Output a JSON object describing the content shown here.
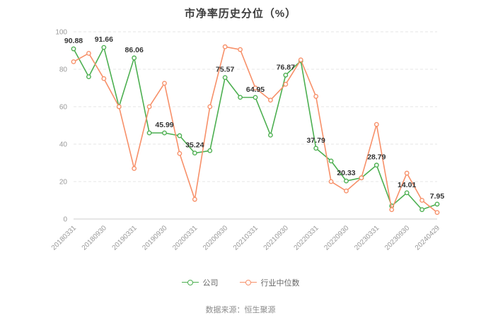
{
  "title": "市净率历史分位（%）",
  "footer": {
    "source_label": "数据来源：恒生聚源"
  },
  "legend": [
    {
      "name": "公司",
      "color": "#4caf50"
    },
    {
      "name": "行业中位数",
      "color": "#f79069"
    }
  ],
  "chart_data": {
    "type": "line",
    "title": "市净率历史分位（%）",
    "xlabel": "",
    "ylabel": "",
    "ylim": [
      0,
      100
    ],
    "y_ticks": [
      0,
      20,
      40,
      60,
      80,
      100
    ],
    "grid": "horizontal-dashed",
    "legend_position": "bottom",
    "x": [
      "20180331",
      "20180630",
      "20180930",
      "20181231",
      "20190331",
      "20190630",
      "20190930",
      "20191231",
      "20200331",
      "20200630",
      "20200930",
      "20201231",
      "20210331",
      "20210630",
      "20210930",
      "20211231",
      "20220331",
      "20220630",
      "20220930",
      "20221231",
      "20230331",
      "20230630",
      "20230930",
      "20231231",
      "20240429"
    ],
    "tick_labels": [
      "20180331",
      "20180930",
      "20190331",
      "20190930",
      "20200331",
      "20200930",
      "20210331",
      "20210930",
      "20220331",
      "20220930",
      "20230331",
      "20230930",
      "20240429"
    ],
    "series": [
      {
        "name": "公司",
        "key": "company",
        "color": "#4caf50",
        "values": [
          90.88,
          76,
          91.66,
          60,
          86.06,
          46,
          45.99,
          44.5,
          35.24,
          36.5,
          75.57,
          65,
          64.95,
          44.8,
          76.87,
          84.5,
          37.79,
          31,
          20.33,
          22,
          28.79,
          7,
          14.01,
          5,
          7.95
        ]
      },
      {
        "name": "行业中位数",
        "key": "industry-median",
        "color": "#f79069",
        "values": [
          84,
          88.5,
          75,
          60,
          27,
          60,
          72.5,
          35,
          10.5,
          60,
          92,
          90.5,
          70,
          63.5,
          72,
          85,
          65.5,
          20,
          15,
          22,
          50.5,
          5,
          24.5,
          10,
          3.5
        ]
      }
    ],
    "point_labels": {
      "series": "公司",
      "indices": [
        0,
        2,
        4,
        6,
        8,
        10,
        12,
        14,
        16,
        18,
        20,
        22,
        24
      ],
      "labels": [
        "90.88",
        "91.66",
        "86.06",
        "45.99",
        "35.24",
        "75.57",
        "64.95",
        "76.87",
        "37.79",
        "20.33",
        "28.79",
        "14.01",
        "7.95"
      ]
    }
  }
}
